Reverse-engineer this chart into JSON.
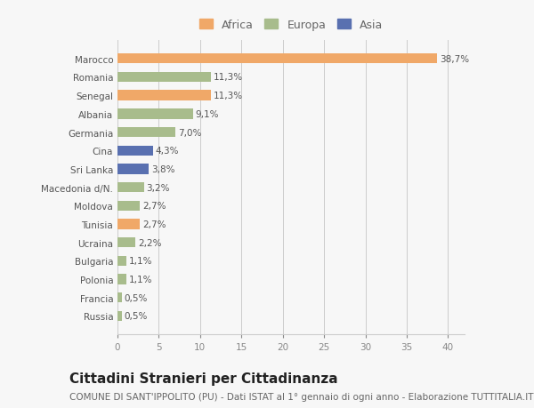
{
  "countries": [
    "Russia",
    "Francia",
    "Polonia",
    "Bulgaria",
    "Ucraina",
    "Tunisia",
    "Moldova",
    "Macedonia d/N.",
    "Sri Lanka",
    "Cina",
    "Germania",
    "Albania",
    "Senegal",
    "Romania",
    "Marocco"
  ],
  "values": [
    0.5,
    0.5,
    1.1,
    1.1,
    2.2,
    2.7,
    2.7,
    3.2,
    3.8,
    4.3,
    7.0,
    9.1,
    11.3,
    11.3,
    38.7
  ],
  "labels": [
    "0,5%",
    "0,5%",
    "1,1%",
    "1,1%",
    "2,2%",
    "2,7%",
    "2,7%",
    "3,2%",
    "3,8%",
    "4,3%",
    "7,0%",
    "9,1%",
    "11,3%",
    "11,3%",
    "38,7%"
  ],
  "continents": [
    "Europa",
    "Europa",
    "Europa",
    "Europa",
    "Europa",
    "Africa",
    "Europa",
    "Europa",
    "Asia",
    "Asia",
    "Europa",
    "Europa",
    "Africa",
    "Europa",
    "Africa"
  ],
  "colors": {
    "Africa": "#f0a868",
    "Europa": "#a8bc8c",
    "Asia": "#5970b0"
  },
  "legend_entries": [
    "Africa",
    "Europa",
    "Asia"
  ],
  "xlim": [
    0,
    42
  ],
  "xticks": [
    0,
    5,
    10,
    15,
    20,
    25,
    30,
    35,
    40
  ],
  "title": "Cittadini Stranieri per Cittadinanza",
  "subtitle": "COMUNE DI SANT'IPPOLITO (PU) - Dati ISTAT al 1° gennaio di ogni anno - Elaborazione TUTTITALIA.IT",
  "bg_color": "#f7f7f7",
  "bar_height": 0.55,
  "title_fontsize": 11,
  "subtitle_fontsize": 7.5,
  "label_fontsize": 7.5,
  "tick_fontsize": 7.5,
  "legend_fontsize": 9
}
